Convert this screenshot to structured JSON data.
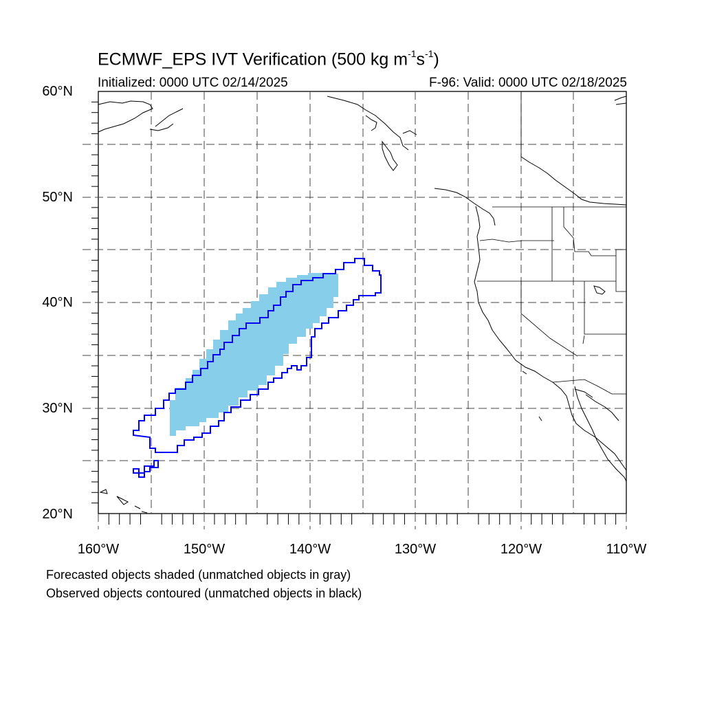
{
  "title": {
    "prefix": "ECMWF_EPS IVT Verification (500 kg m",
    "exp1": "-1",
    "mid": "s",
    "exp2": "-1",
    "suffix": ")"
  },
  "subtitle_left": "Initialized: 0000 UTC 02/14/2025",
  "subtitle_right": "F-96: Valid: 0000 UTC 02/18/2025",
  "lat_labels": [
    "60°N",
    "50°N",
    "40°N",
    "30°N",
    "20°N"
  ],
  "lon_labels": [
    "160°W",
    "150°W",
    "140°W",
    "130°W",
    "120°W",
    "110°W"
  ],
  "notes": {
    "line1": "Forecasted objects shaded (unmatched objects in gray)",
    "line2": "Observed objects contoured (unmatched objects in black)"
  },
  "map_extent": {
    "lon_min": -160,
    "lon_max": -110,
    "lat_min": 20,
    "lat_max": 60
  },
  "colors": {
    "forecast_fill": "#87ceeb",
    "observed_contour": "#0000ff",
    "coastline": "#000000",
    "grid": "#444444"
  }
}
